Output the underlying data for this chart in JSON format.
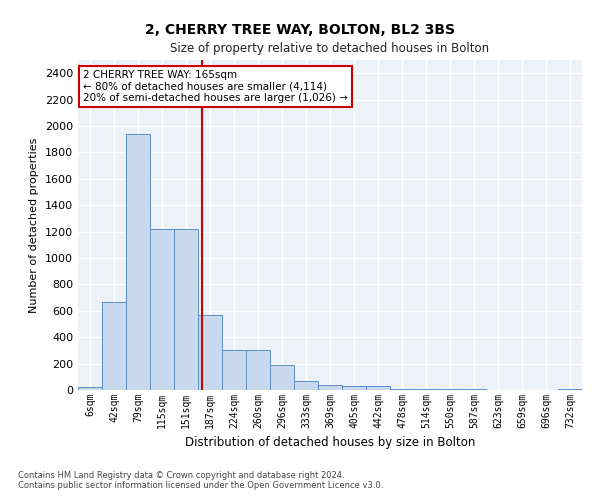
{
  "title": "2, CHERRY TREE WAY, BOLTON, BL2 3BS",
  "subtitle": "Size of property relative to detached houses in Bolton",
  "xlabel": "Distribution of detached houses by size in Bolton",
  "ylabel": "Number of detached properties",
  "bar_color": "#c9d9ed",
  "bar_edge_color": "#5b8fc9",
  "bar_categories": [
    "6sqm",
    "42sqm",
    "79sqm",
    "115sqm",
    "151sqm",
    "187sqm",
    "224sqm",
    "260sqm",
    "296sqm",
    "333sqm",
    "369sqm",
    "405sqm",
    "442sqm",
    "478sqm",
    "514sqm",
    "550sqm",
    "587sqm",
    "623sqm",
    "659sqm",
    "696sqm",
    "732sqm"
  ],
  "bar_values": [
    20,
    670,
    1940,
    1220,
    1220,
    570,
    300,
    300,
    190,
    65,
    40,
    30,
    30,
    10,
    10,
    5,
    5,
    3,
    2,
    2,
    5
  ],
  "ylim": [
    0,
    2500
  ],
  "yticks": [
    0,
    200,
    400,
    600,
    800,
    1000,
    1200,
    1400,
    1600,
    1800,
    2000,
    2200,
    2400
  ],
  "property_line_x": 4.67,
  "annotation_title": "2 CHERRY TREE WAY: 165sqm",
  "annotation_line1": "← 80% of detached houses are smaller (4,114)",
  "annotation_line2": "20% of semi-detached houses are larger (1,026) →",
  "annotation_box_color": "#cc0000",
  "vline_color": "#cc0000",
  "footer1": "Contains HM Land Registry data © Crown copyright and database right 2024.",
  "footer2": "Contains public sector information licensed under the Open Government Licence v3.0.",
  "background_color": "#edf2f9",
  "grid_color": "#ffffff",
  "fig_width": 6.0,
  "fig_height": 5.0,
  "fig_dpi": 100
}
